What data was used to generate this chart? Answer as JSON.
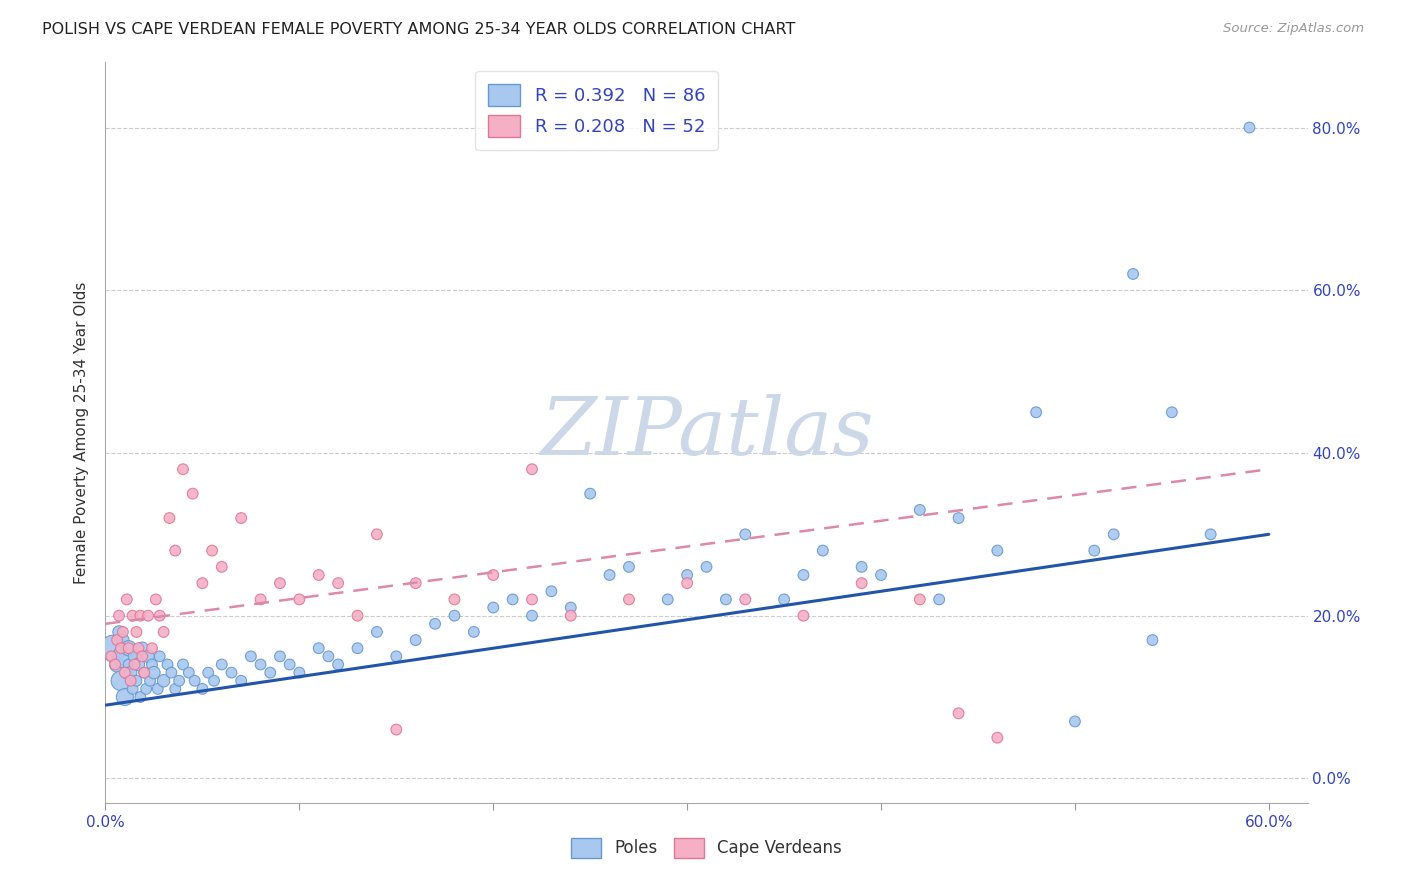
{
  "title": "POLISH VS CAPE VERDEAN FEMALE POVERTY AMONG 25-34 YEAR OLDS CORRELATION CHART",
  "source": "Source: ZipAtlas.com",
  "ylabel": "Female Poverty Among 25-34 Year Olds",
  "xlim": [
    0.0,
    0.62
  ],
  "ylim": [
    -0.03,
    0.88
  ],
  "y_tick_vals": [
    0.0,
    0.2,
    0.4,
    0.6,
    0.8
  ],
  "y_tick_labels": [
    "0.0%",
    "20.0%",
    "40.0%",
    "60.0%",
    "80.0%"
  ],
  "x_tick_vals": [
    0.0,
    0.1,
    0.2,
    0.3,
    0.4,
    0.5,
    0.6
  ],
  "x_tick_labels": [
    "0.0%",
    "",
    "",
    "",
    "",
    "",
    "60.0%"
  ],
  "poles_color": "#a8c8f0",
  "poles_edge_color": "#6699cc",
  "cape_color": "#f5b0c5",
  "cape_edge_color": "#dd7799",
  "blue_line_color": "#2255aa",
  "pink_line_color": "#dd88aa",
  "poles_R": 0.392,
  "poles_N": 86,
  "cape_R": 0.208,
  "cape_N": 52,
  "watermark": "ZIPatlas",
  "watermark_color": "#ccd8e8",
  "background_color": "#ffffff",
  "grid_color": "#cccccc",
  "poles_x": [
    0.004,
    0.006,
    0.007,
    0.008,
    0.009,
    0.01,
    0.01,
    0.011,
    0.012,
    0.012,
    0.013,
    0.014,
    0.015,
    0.016,
    0.017,
    0.018,
    0.019,
    0.02,
    0.021,
    0.022,
    0.023,
    0.024,
    0.025,
    0.027,
    0.028,
    0.03,
    0.032,
    0.034,
    0.036,
    0.038,
    0.04,
    0.043,
    0.046,
    0.05,
    0.053,
    0.056,
    0.06,
    0.065,
    0.07,
    0.075,
    0.08,
    0.085,
    0.09,
    0.095,
    0.1,
    0.11,
    0.115,
    0.12,
    0.13,
    0.14,
    0.15,
    0.16,
    0.17,
    0.18,
    0.19,
    0.2,
    0.21,
    0.22,
    0.23,
    0.24,
    0.25,
    0.26,
    0.27,
    0.29,
    0.3,
    0.31,
    0.32,
    0.33,
    0.35,
    0.36,
    0.37,
    0.39,
    0.4,
    0.42,
    0.43,
    0.44,
    0.46,
    0.48,
    0.5,
    0.51,
    0.52,
    0.53,
    0.54,
    0.55,
    0.57,
    0.59
  ],
  "poles_y": [
    0.16,
    0.14,
    0.18,
    0.12,
    0.17,
    0.15,
    0.1,
    0.13,
    0.14,
    0.16,
    0.13,
    0.11,
    0.15,
    0.12,
    0.14,
    0.1,
    0.16,
    0.13,
    0.11,
    0.15,
    0.12,
    0.14,
    0.13,
    0.11,
    0.15,
    0.12,
    0.14,
    0.13,
    0.11,
    0.12,
    0.14,
    0.13,
    0.12,
    0.11,
    0.13,
    0.12,
    0.14,
    0.13,
    0.12,
    0.15,
    0.14,
    0.13,
    0.15,
    0.14,
    0.13,
    0.16,
    0.15,
    0.14,
    0.16,
    0.18,
    0.15,
    0.17,
    0.19,
    0.2,
    0.18,
    0.21,
    0.22,
    0.2,
    0.23,
    0.21,
    0.35,
    0.25,
    0.26,
    0.22,
    0.25,
    0.26,
    0.22,
    0.3,
    0.22,
    0.25,
    0.28,
    0.26,
    0.25,
    0.33,
    0.22,
    0.32,
    0.28,
    0.45,
    0.07,
    0.28,
    0.3,
    0.62,
    0.17,
    0.45,
    0.3,
    0.8
  ],
  "poles_sizes": [
    350,
    120,
    80,
    200,
    80,
    300,
    150,
    80,
    60,
    120,
    80,
    60,
    80,
    60,
    80,
    60,
    80,
    60,
    60,
    80,
    60,
    60,
    80,
    60,
    60,
    80,
    60,
    60,
    60,
    60,
    60,
    60,
    60,
    60,
    60,
    60,
    60,
    60,
    60,
    60,
    60,
    60,
    60,
    60,
    60,
    60,
    60,
    60,
    60,
    60,
    60,
    60,
    60,
    60,
    60,
    60,
    60,
    60,
    60,
    60,
    60,
    60,
    60,
    60,
    60,
    60,
    60,
    60,
    60,
    60,
    60,
    60,
    60,
    60,
    60,
    60,
    60,
    60,
    60,
    60,
    60,
    60,
    60,
    60,
    60,
    60
  ],
  "cape_x": [
    0.003,
    0.005,
    0.006,
    0.007,
    0.008,
    0.009,
    0.01,
    0.011,
    0.012,
    0.013,
    0.014,
    0.015,
    0.016,
    0.017,
    0.018,
    0.019,
    0.02,
    0.022,
    0.024,
    0.026,
    0.028,
    0.03,
    0.033,
    0.036,
    0.04,
    0.045,
    0.05,
    0.055,
    0.06,
    0.07,
    0.08,
    0.09,
    0.1,
    0.11,
    0.12,
    0.13,
    0.14,
    0.16,
    0.18,
    0.2,
    0.22,
    0.24,
    0.27,
    0.3,
    0.33,
    0.36,
    0.39,
    0.42,
    0.44,
    0.46,
    0.22,
    0.15
  ],
  "cape_y": [
    0.15,
    0.14,
    0.17,
    0.2,
    0.16,
    0.18,
    0.13,
    0.22,
    0.16,
    0.12,
    0.2,
    0.14,
    0.18,
    0.16,
    0.2,
    0.15,
    0.13,
    0.2,
    0.16,
    0.22,
    0.2,
    0.18,
    0.32,
    0.28,
    0.38,
    0.35,
    0.24,
    0.28,
    0.26,
    0.32,
    0.22,
    0.24,
    0.22,
    0.25,
    0.24,
    0.2,
    0.3,
    0.24,
    0.22,
    0.25,
    0.22,
    0.2,
    0.22,
    0.24,
    0.22,
    0.2,
    0.24,
    0.22,
    0.08,
    0.05,
    0.38,
    0.06
  ],
  "cape_sizes": [
    60,
    60,
    60,
    60,
    60,
    60,
    60,
    60,
    60,
    60,
    60,
    60,
    60,
    60,
    60,
    60,
    60,
    60,
    60,
    60,
    60,
    60,
    60,
    60,
    60,
    60,
    60,
    60,
    60,
    60,
    60,
    60,
    60,
    60,
    60,
    60,
    60,
    60,
    60,
    60,
    60,
    60,
    60,
    60,
    60,
    60,
    60,
    60,
    60,
    60,
    60,
    60
  ],
  "poles_line_x": [
    0.0,
    0.6
  ],
  "poles_line_y": [
    0.09,
    0.3
  ],
  "cape_line_x": [
    0.0,
    0.6
  ],
  "cape_line_y": [
    0.19,
    0.38
  ]
}
